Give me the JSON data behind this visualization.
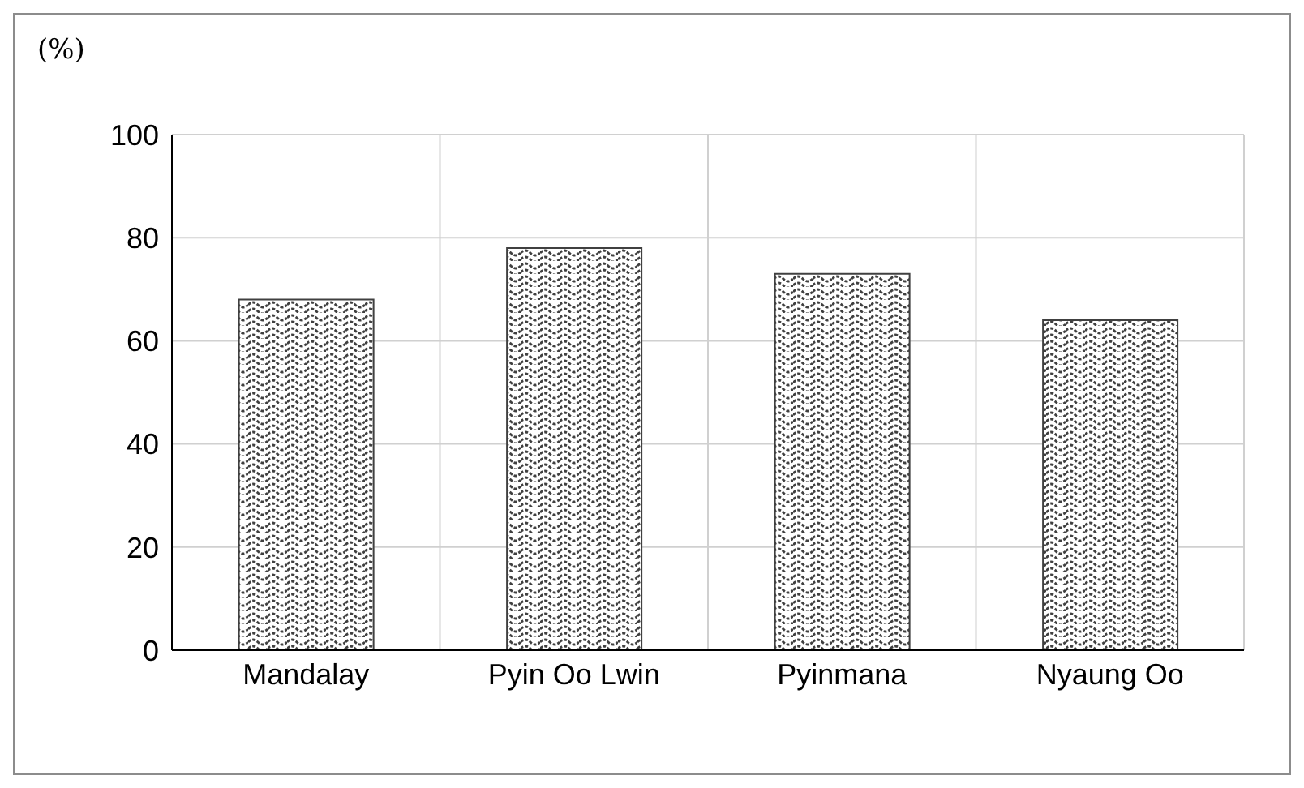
{
  "chart_data": {
    "type": "bar",
    "ylabel": "(%)",
    "categories": [
      "Mandalay",
      "Pyin Oo Lwin",
      "Pyinmana",
      "Nyaung Oo"
    ],
    "values": [
      68,
      78,
      73,
      64
    ],
    "color": "#404040",
    "ylim": [
      0,
      100
    ],
    "yticks": [
      0,
      20,
      40,
      60,
      80,
      100
    ],
    "grid": true
  }
}
